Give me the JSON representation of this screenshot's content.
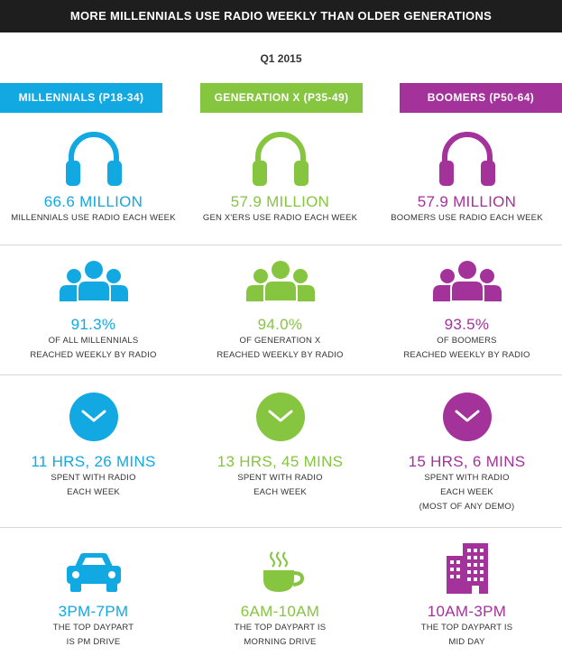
{
  "header": {
    "title": "MORE MILLENNIALS USE RADIO WEEKLY THAN OLDER GENERATIONS"
  },
  "subtitle": "Q1 2015",
  "colors": {
    "millennials": "#12a8e2",
    "genx": "#86c540",
    "boomers": "#a3329a"
  },
  "columns": [
    {
      "label": "MILLENNIALS (P18-34)",
      "audience": {
        "value": "66.6 MILLION",
        "line1": "MILLENNIALS USE RADIO EACH WEEK"
      },
      "reach": {
        "value": "91.3%",
        "line1": "OF ALL MILLENNIALS",
        "line2": "REACHED WEEKLY BY RADIO"
      },
      "time": {
        "value": "11 HRS, 26 MINS",
        "line1": "SPENT WITH RADIO",
        "line2": "EACH WEEK",
        "line3": ""
      },
      "daypart": {
        "value": "3PM-7PM",
        "line1": "THE TOP DAYPART",
        "line2": "IS PM DRIVE",
        "icon": "car-icon"
      }
    },
    {
      "label": "GENERATION X (P35-49)",
      "audience": {
        "value": "57.9 MILLION",
        "line1": "GEN X'ERS USE RADIO EACH WEEK"
      },
      "reach": {
        "value": "94.0%",
        "line1": "OF GENERATION X",
        "line2": "REACHED WEEKLY BY RADIO"
      },
      "time": {
        "value": "13 HRS, 45 MINS",
        "line1": "SPENT WITH RADIO",
        "line2": "EACH WEEK",
        "line3": ""
      },
      "daypart": {
        "value": "6AM-10AM",
        "line1": "THE TOP DAYPART IS",
        "line2": "MORNING DRIVE",
        "icon": "coffee-cup-icon"
      }
    },
    {
      "label": "BOOMERS (P50-64)",
      "audience": {
        "value": "57.9 MILLION",
        "line1": "BOOMERS USE RADIO EACH WEEK"
      },
      "reach": {
        "value": "93.5%",
        "line1": "OF BOOMERS",
        "line2": "REACHED WEEKLY BY RADIO"
      },
      "time": {
        "value": "15 HRS, 6 MINS",
        "line1": "SPENT WITH RADIO",
        "line2": "EACH WEEK",
        "line3": "(MOST OF ANY DEMO)"
      },
      "daypart": {
        "value": "10AM-3PM",
        "line1": "THE TOP DAYPART IS",
        "line2": "MID DAY",
        "icon": "office-building-icon"
      }
    }
  ]
}
